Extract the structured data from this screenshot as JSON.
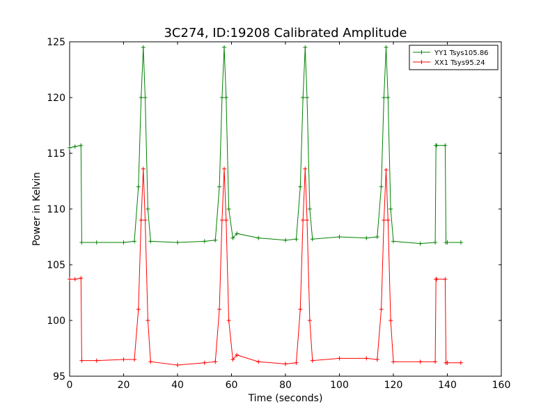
{
  "chart_data": {
    "type": "line",
    "title": "3C274, ID:19208 Calibrated Amplitude",
    "xlabel": "Time (seconds)",
    "ylabel": "Power in Kelvin",
    "xlim": [
      0,
      160
    ],
    "ylim": [
      95,
      125
    ],
    "xticks": [
      "0",
      "20",
      "40",
      "60",
      "80",
      "100",
      "120",
      "140",
      "160"
    ],
    "yticks": [
      "95",
      "100",
      "105",
      "110",
      "115",
      "120",
      "125"
    ],
    "grid": false,
    "legend": {
      "placement": "top-right"
    },
    "marker": "+",
    "series": [
      {
        "name": "YY1 Tsys105.86",
        "color": "#008000",
        "x": [
          0,
          2,
          4.2,
          4.5,
          10,
          20,
          24,
          25.5,
          26.5,
          27.3,
          28,
          29,
          30,
          40,
          50,
          54,
          55.5,
          56.5,
          57.3,
          58,
          59,
          60.5,
          62,
          70,
          80,
          84,
          85.5,
          86.5,
          87.3,
          88,
          89,
          90,
          100,
          110,
          114,
          115.5,
          116.5,
          117.3,
          118,
          119,
          120,
          130,
          135.5,
          135.8,
          136,
          139.2,
          139.5,
          140,
          145
        ],
        "y": [
          115.5,
          115.6,
          115.7,
          107.0,
          107.0,
          107.0,
          107.1,
          112.0,
          120.0,
          124.5,
          120.0,
          110.0,
          107.1,
          107.0,
          107.1,
          107.2,
          112.0,
          120.0,
          124.5,
          120.0,
          110.0,
          107.4,
          107.8,
          107.4,
          107.2,
          107.3,
          112.0,
          120.0,
          124.5,
          120.0,
          110.0,
          107.3,
          107.5,
          107.4,
          107.5,
          112.0,
          120.0,
          124.5,
          120.0,
          110.0,
          107.1,
          106.9,
          107.0,
          115.7,
          115.7,
          115.7,
          107.0,
          107.0,
          107.0
        ]
      },
      {
        "name": "XX1 Tsys95.24",
        "color": "#ff0000",
        "x": [
          0,
          2,
          4.2,
          4.5,
          10,
          20,
          24,
          25.5,
          26.5,
          27.3,
          28,
          29,
          30,
          40,
          50,
          54,
          55.5,
          56.5,
          57.3,
          58,
          59,
          60.5,
          62,
          70,
          80,
          84,
          85.5,
          86.5,
          87.3,
          88,
          89,
          90,
          100,
          110,
          114,
          115.5,
          116.5,
          117.3,
          118,
          119,
          120,
          130,
          135.5,
          135.8,
          136,
          139.2,
          139.5,
          140,
          145
        ],
        "y": [
          103.7,
          103.7,
          103.8,
          96.4,
          96.4,
          96.5,
          96.5,
          101.0,
          109.0,
          113.6,
          109.0,
          100.0,
          96.3,
          96.0,
          96.2,
          96.3,
          101.0,
          109.0,
          113.6,
          109.0,
          100.0,
          96.5,
          96.9,
          96.3,
          96.1,
          96.2,
          101.0,
          109.0,
          113.6,
          109.0,
          100.0,
          96.4,
          96.6,
          96.6,
          96.5,
          101.0,
          109.0,
          113.5,
          109.0,
          100.0,
          96.3,
          96.3,
          96.3,
          103.7,
          103.7,
          103.7,
          96.2,
          96.2,
          96.2
        ]
      }
    ]
  }
}
